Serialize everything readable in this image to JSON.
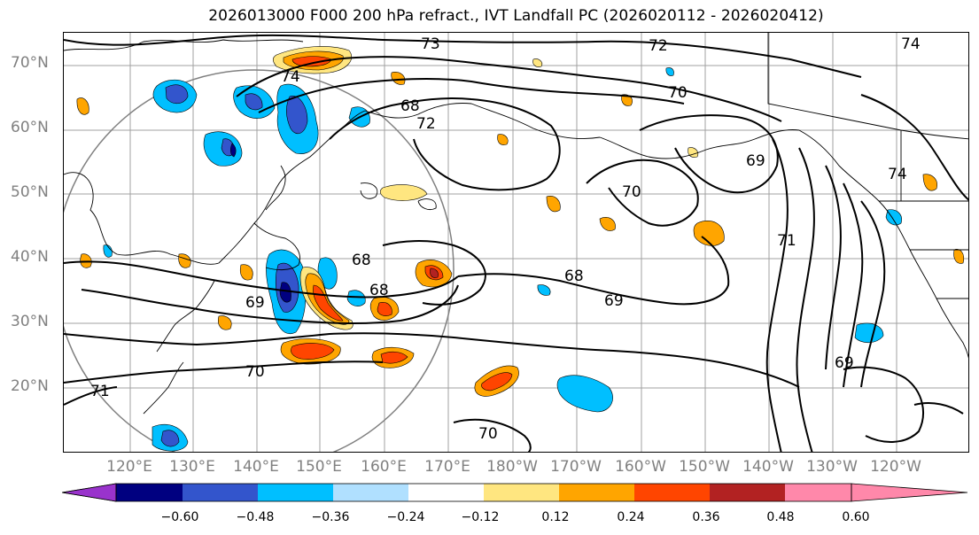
{
  "title": "2026013000 F000 200 hPa refract., IVT Landfall PC (2026020112 - 2026020412)",
  "lat_labels": [
    "70°N",
    "60°N",
    "50°N",
    "40°N",
    "30°N",
    "20°N"
  ],
  "lon_labels": [
    "120°E",
    "130°E",
    "140°E",
    "150°E",
    "160°E",
    "170°E",
    "180°W",
    "170°W",
    "160°W",
    "150°W",
    "140°W",
    "130°W",
    "120°W"
  ],
  "contour_labels": [
    "73",
    "72",
    "74",
    "74",
    "70",
    "68",
    "72",
    "69",
    "70",
    "74",
    "71",
    "68",
    "68",
    "69",
    "68",
    "69",
    "70",
    "71",
    "70",
    "69"
  ],
  "colorbar": {
    "ticks": [
      "−0.60",
      "−0.48",
      "−0.36",
      "−0.24",
      "−0.12",
      "0.12",
      "0.24",
      "0.36",
      "0.48",
      "0.60"
    ],
    "colors": [
      "#9933cc",
      "#000080",
      "#3355cc",
      "#00bfff",
      "#b0e0ff",
      "#ffffff",
      "#ffe680",
      "#ffa500",
      "#ff4500",
      "#b22222",
      "#ff88aa"
    ]
  }
}
